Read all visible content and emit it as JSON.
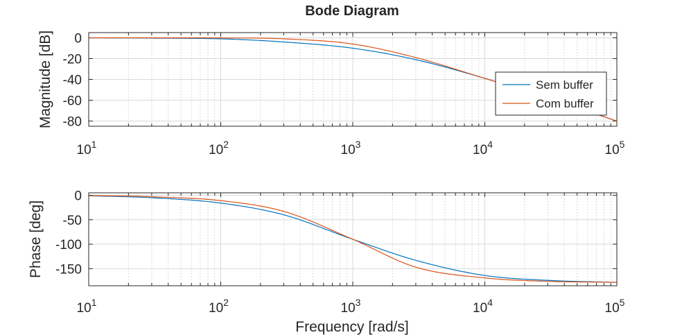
{
  "chart_data": {
    "type": "line",
    "title": "Bode Diagram",
    "xlabel": "Frequency [rad/s]",
    "xscale": "log",
    "xlim": [
      10,
      100000
    ],
    "x_ticks": [
      10,
      100,
      1000,
      10000,
      100000
    ],
    "grid": true,
    "legend": {
      "placement": "right",
      "entries": [
        "Sem buffer",
        "Com buffer"
      ]
    },
    "colors": {
      "Sem buffer": "#0072BD",
      "Com buffer": "#D95319"
    },
    "panels": [
      {
        "ylabel": "Magnitude [dB]",
        "ylim": [
          -85,
          5
        ],
        "y_ticks": [
          0,
          -20,
          -40,
          -60,
          -80
        ],
        "x": [
          10,
          30,
          100,
          300,
          1000,
          3000,
          10000,
          30000,
          100000
        ],
        "series": [
          {
            "name": "Sem buffer",
            "values": [
              -0.1,
              -0.3,
              -1.0,
              -4.0,
              -10.0,
              -21.0,
              -39.0,
              -58.0,
              -80.0
            ]
          },
          {
            "name": "Com buffer",
            "values": [
              0.0,
              0.0,
              -0.1,
              -1.0,
              -6.0,
              -19.0,
              -39.0,
              -58.0,
              -80.0
            ]
          }
        ]
      },
      {
        "ylabel": "Phase [deg]",
        "ylim": [
          -185,
          5
        ],
        "y_ticks": [
          0,
          -50,
          -100,
          -150
        ],
        "x": [
          10,
          30,
          100,
          300,
          1000,
          3000,
          10000,
          30000,
          100000
        ],
        "series": [
          {
            "name": "Sem buffer",
            "values": [
              -1,
              -5,
              -16,
              -40,
              -90,
              -133,
              -164,
              -174,
              -178
            ]
          },
          {
            "name": "Com buffer",
            "values": [
              -0.5,
              -3,
              -11,
              -33,
              -90,
              -147,
              -169,
              -176,
              -178
            ]
          }
        ]
      }
    ]
  }
}
